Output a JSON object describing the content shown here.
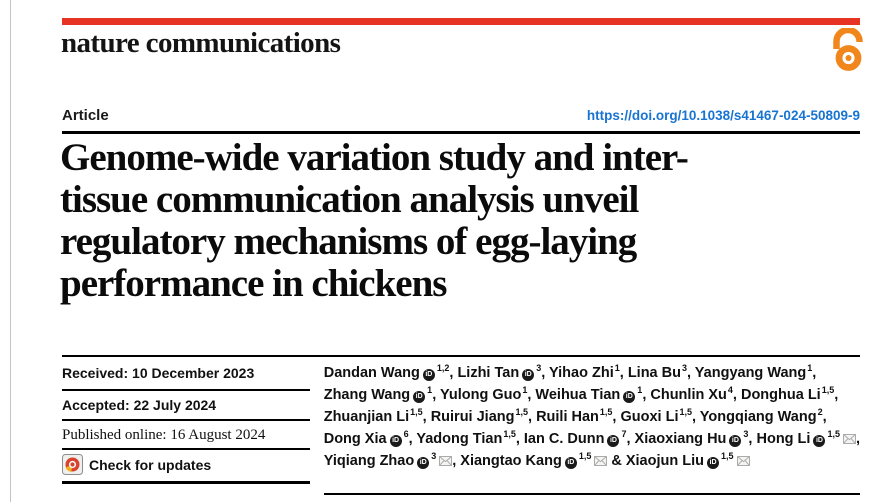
{
  "masthead": {
    "brand": "nature communications",
    "bar_color": "#e63323",
    "open_access_icon": "open-access-lock",
    "open_access_icon_color": "#f0861c"
  },
  "meta": {
    "kicker": "Article",
    "doi": "https://doi.org/10.1038/s41467-024-50809-9",
    "doi_color": "#1874d2"
  },
  "title": {
    "full": "Genome-wide variation study and inter-tissue communication analysis unveil regulatory mechanisms of egg-laying performance in chickens",
    "lines": [
      "Genome-wide variation study and inter-",
      "tissue communication analysis unveil",
      "regulatory mechanisms of egg-laying",
      "performance in chickens"
    ]
  },
  "history": [
    {
      "text": "Received: 10 December 2023"
    },
    {
      "text": "Accepted: 22 July 2024"
    },
    {
      "text": "Published online: 16 August 2024"
    }
  ],
  "updates": {
    "label": "Check for updates",
    "icon": "crossmark-badge",
    "icon_colors": {
      "circle": "#d8432f",
      "wedge": "#f3b01c"
    }
  },
  "icons": {
    "orcid": {
      "name": "orcid-id-icon",
      "glyph": "iD",
      "color": "#1a1a1a"
    },
    "email": {
      "name": "envelope-icon",
      "color": "#ababab"
    }
  },
  "authors": {
    "lines": [
      [
        {
          "name": "Dandan Wang",
          "orcid": true,
          "sup": "1,2",
          "sep": ", "
        },
        {
          "name": "Lizhi Tan",
          "orcid": true,
          "sup": "3",
          "sep": ", "
        },
        {
          "name": "Yihao Zhi",
          "sup": "1",
          "sep": ", "
        },
        {
          "name": "Lina Bu",
          "sup": "3",
          "sep": ", "
        },
        {
          "name": "Yangyang Wang",
          "sup": "1",
          "sep": ","
        }
      ],
      [
        {
          "name": "Zhang Wang",
          "orcid": true,
          "sup": "1",
          "sep": ", "
        },
        {
          "name": "Yulong Guo",
          "sup": "1",
          "sep": ", "
        },
        {
          "name": "Weihua Tian",
          "orcid": true,
          "sup": "1",
          "sep": ", "
        },
        {
          "name": "Chunlin Xu",
          "sup": "4",
          "sep": ", "
        },
        {
          "name": "Donghua Li",
          "sup": "1,5",
          "sep": ","
        }
      ],
      [
        {
          "name": "Zhuanjian Li",
          "sup": "1,5",
          "sep": ", "
        },
        {
          "name": "Ruirui Jiang",
          "sup": "1,5",
          "sep": ", "
        },
        {
          "name": "Ruili Han",
          "sup": "1,5",
          "sep": ", "
        },
        {
          "name": "Guoxi Li",
          "sup": "1,5",
          "sep": ", "
        },
        {
          "name": "Yongqiang Wang",
          "sup": "2",
          "sep": ","
        }
      ],
      [
        {
          "name": "Dong Xia",
          "orcid": true,
          "sup": "6",
          "sep": ", "
        },
        {
          "name": "Yadong Tian",
          "sup": "1,5",
          "sep": ", "
        },
        {
          "name": "Ian C. Dunn",
          "orcid": true,
          "sup": "7",
          "sep": ", "
        },
        {
          "name": "Xiaoxiang Hu",
          "orcid": true,
          "sup": "3",
          "sep": ", "
        },
        {
          "name": "Hong Li",
          "orcid": true,
          "sup": "1,5",
          "email": true,
          "sep": ","
        }
      ],
      [
        {
          "name": "Yiqiang Zhao",
          "orcid": true,
          "sup": "3",
          "email": true,
          "sep": ", "
        },
        {
          "name": "Xiangtao Kang",
          "orcid": true,
          "sup": "1,5",
          "email": true,
          "sep": " & "
        },
        {
          "name": "Xiaojun Liu",
          "orcid": true,
          "sup": "1,5",
          "email": true,
          "sep": ""
        }
      ]
    ]
  }
}
